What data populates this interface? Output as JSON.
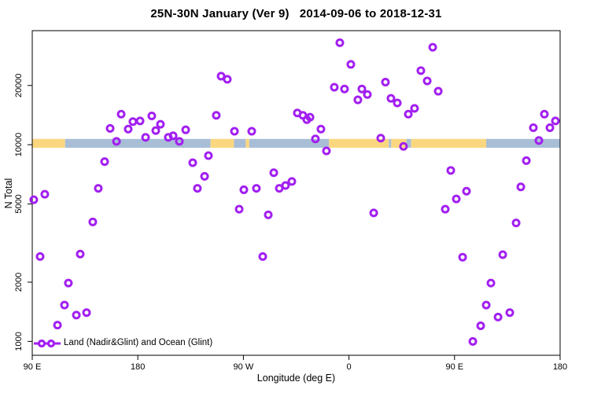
{
  "figure": {
    "title": "25N-30N January (Ver 9)   2014-09-06 to 2018-12-31",
    "xlabel": "Longitude (deg E)",
    "ylabel": "N Total",
    "legend_label": "Land (Nadir&Glint) and Ocean (Glint)"
  },
  "colors": {
    "point_stroke": "#A21FF0",
    "land_band": "#FAD77F",
    "ocean_band": "#A8BDD6",
    "axis": "#000000"
  },
  "chart_data": {
    "type": "scatter",
    "title": "25N-30N January (Ver 9)   2014-09-06 to 2018-12-31",
    "xlabel": "Longitude (deg E)",
    "ylabel": "N Total",
    "x_axis": {
      "note": "longitude axis spans 450 deg starting at 90E, wrapping through 180, 90W, 0, 90E to 180",
      "range_plot_coords": [
        90,
        540
      ],
      "ticks": [
        {
          "lon": 90,
          "label": "90 E"
        },
        {
          "lon": 180,
          "label": "180"
        },
        {
          "lon": 270,
          "label": "90 W"
        },
        {
          "lon": 360,
          "label": "0"
        },
        {
          "lon": 450,
          "label": "90 E"
        },
        {
          "lon": 540,
          "label": "180"
        }
      ]
    },
    "y_axis": {
      "scale": "log",
      "range": [
        850,
        38000
      ],
      "ticks": [
        {
          "value": 1000,
          "label": "1000"
        },
        {
          "value": 2000,
          "label": "2000"
        },
        {
          "value": 5000,
          "label": "5000"
        },
        {
          "value": 10000,
          "label": "10000"
        },
        {
          "value": 20000,
          "label": "20000"
        }
      ]
    },
    "legend": {
      "label": "Land (Nadir&Glint) and Ocean (Glint)",
      "position": "bottom-left"
    },
    "land_ocean_band": {
      "description": "horizontal strip near N=10000 showing land (orange) vs ocean (blue) along longitude",
      "value_range": [
        9650,
        10700
      ],
      "segments": [
        {
          "from": 90,
          "to": 118,
          "type": "land"
        },
        {
          "from": 118,
          "to": 242,
          "type": "ocean"
        },
        {
          "from": 242,
          "to": 262,
          "type": "land"
        },
        {
          "from": 262,
          "to": 272,
          "type": "ocean"
        },
        {
          "from": 272,
          "to": 275,
          "type": "land"
        },
        {
          "from": 275,
          "to": 343,
          "type": "ocean"
        },
        {
          "from": 343,
          "to": 394,
          "type": "land"
        },
        {
          "from": 394,
          "to": 396,
          "type": "ocean"
        },
        {
          "from": 396,
          "to": 409,
          "type": "land"
        },
        {
          "from": 409,
          "to": 413,
          "type": "ocean"
        },
        {
          "from": 413,
          "to": 477,
          "type": "land"
        },
        {
          "from": 477,
          "to": 540,
          "type": "ocean"
        }
      ]
    },
    "points_format": [
      "longitude_plot_coord",
      "n_total"
    ],
    "points": [
      [
        165.8,
        14300
      ],
      [
        191.9,
        14000
      ],
      [
        156.4,
        12100
      ],
      [
        171.8,
        12000
      ],
      [
        175.8,
        13100
      ],
      [
        181.9,
        13200
      ],
      [
        186.6,
        10900
      ],
      [
        195.3,
        11800
      ],
      [
        199.3,
        12700
      ],
      [
        206.0,
        10900
      ],
      [
        210.1,
        11100
      ],
      [
        215.4,
        10400
      ],
      [
        220.8,
        11900
      ],
      [
        161.8,
        10400
      ],
      [
        151.7,
        8200
      ],
      [
        146.3,
        6000
      ],
      [
        226.8,
        8100
      ],
      [
        230.8,
        6000
      ],
      [
        236.9,
        6900
      ],
      [
        240.2,
        8800
      ],
      [
        100.7,
        5600
      ],
      [
        91.3,
        5250
      ],
      [
        352.2,
        33000
      ],
      [
        361.6,
        25600
      ],
      [
        251.0,
        22300
      ],
      [
        256.3,
        21500
      ],
      [
        347.5,
        19600
      ],
      [
        356.2,
        19200
      ],
      [
        371.0,
        19200
      ],
      [
        375.7,
        18000
      ],
      [
        367.6,
        16900
      ],
      [
        391.1,
        20800
      ],
      [
        395.8,
        17200
      ],
      [
        246.9,
        14100
      ],
      [
        316.0,
        14500
      ],
      [
        320.7,
        14100
      ],
      [
        324.1,
        13400
      ],
      [
        326.8,
        13800
      ],
      [
        262.4,
        11700
      ],
      [
        277.1,
        11700
      ],
      [
        336.1,
        12000
      ],
      [
        331.4,
        10700
      ],
      [
        340.8,
        9300
      ],
      [
        387.1,
        10800
      ],
      [
        295.9,
        7200
      ],
      [
        270.4,
        5900
      ],
      [
        281.1,
        6000
      ],
      [
        300.6,
        6000
      ],
      [
        305.9,
        6200
      ],
      [
        311.3,
        6500
      ],
      [
        431.4,
        31300
      ],
      [
        421.3,
        23800
      ],
      [
        426.7,
        21100
      ],
      [
        436.1,
        18700
      ],
      [
        401.2,
        16300
      ],
      [
        410.6,
        14300
      ],
      [
        415.9,
        15300
      ],
      [
        526.6,
        14300
      ],
      [
        536.0,
        13200
      ],
      [
        517.2,
        12200
      ],
      [
        531.3,
        12200
      ],
      [
        521.9,
        10500
      ],
      [
        406.5,
        9800
      ],
      [
        511.2,
        8300
      ],
      [
        446.8,
        7400
      ],
      [
        506.5,
        6100
      ],
      [
        460.2,
        5800
      ],
      [
        141.6,
        4050
      ],
      [
        96.7,
        2700
      ],
      [
        130.9,
        2780
      ],
      [
        120.8,
        1980
      ],
      [
        117.5,
        1530
      ],
      [
        127.6,
        1360
      ],
      [
        136.3,
        1400
      ],
      [
        111.5,
        1210
      ],
      [
        266.4,
        4700
      ],
      [
        291.2,
        4400
      ],
      [
        381.1,
        4500
      ],
      [
        286.5,
        2700
      ],
      [
        442.1,
        4700
      ],
      [
        451.5,
        5300
      ],
      [
        502.5,
        4000
      ],
      [
        456.9,
        2680
      ],
      [
        491.1,
        2760
      ],
      [
        481.0,
        1980
      ],
      [
        477.0,
        1530
      ],
      [
        487.1,
        1330
      ],
      [
        497.1,
        1400
      ],
      [
        472.3,
        1200
      ],
      [
        465.6,
        1000
      ]
    ]
  }
}
